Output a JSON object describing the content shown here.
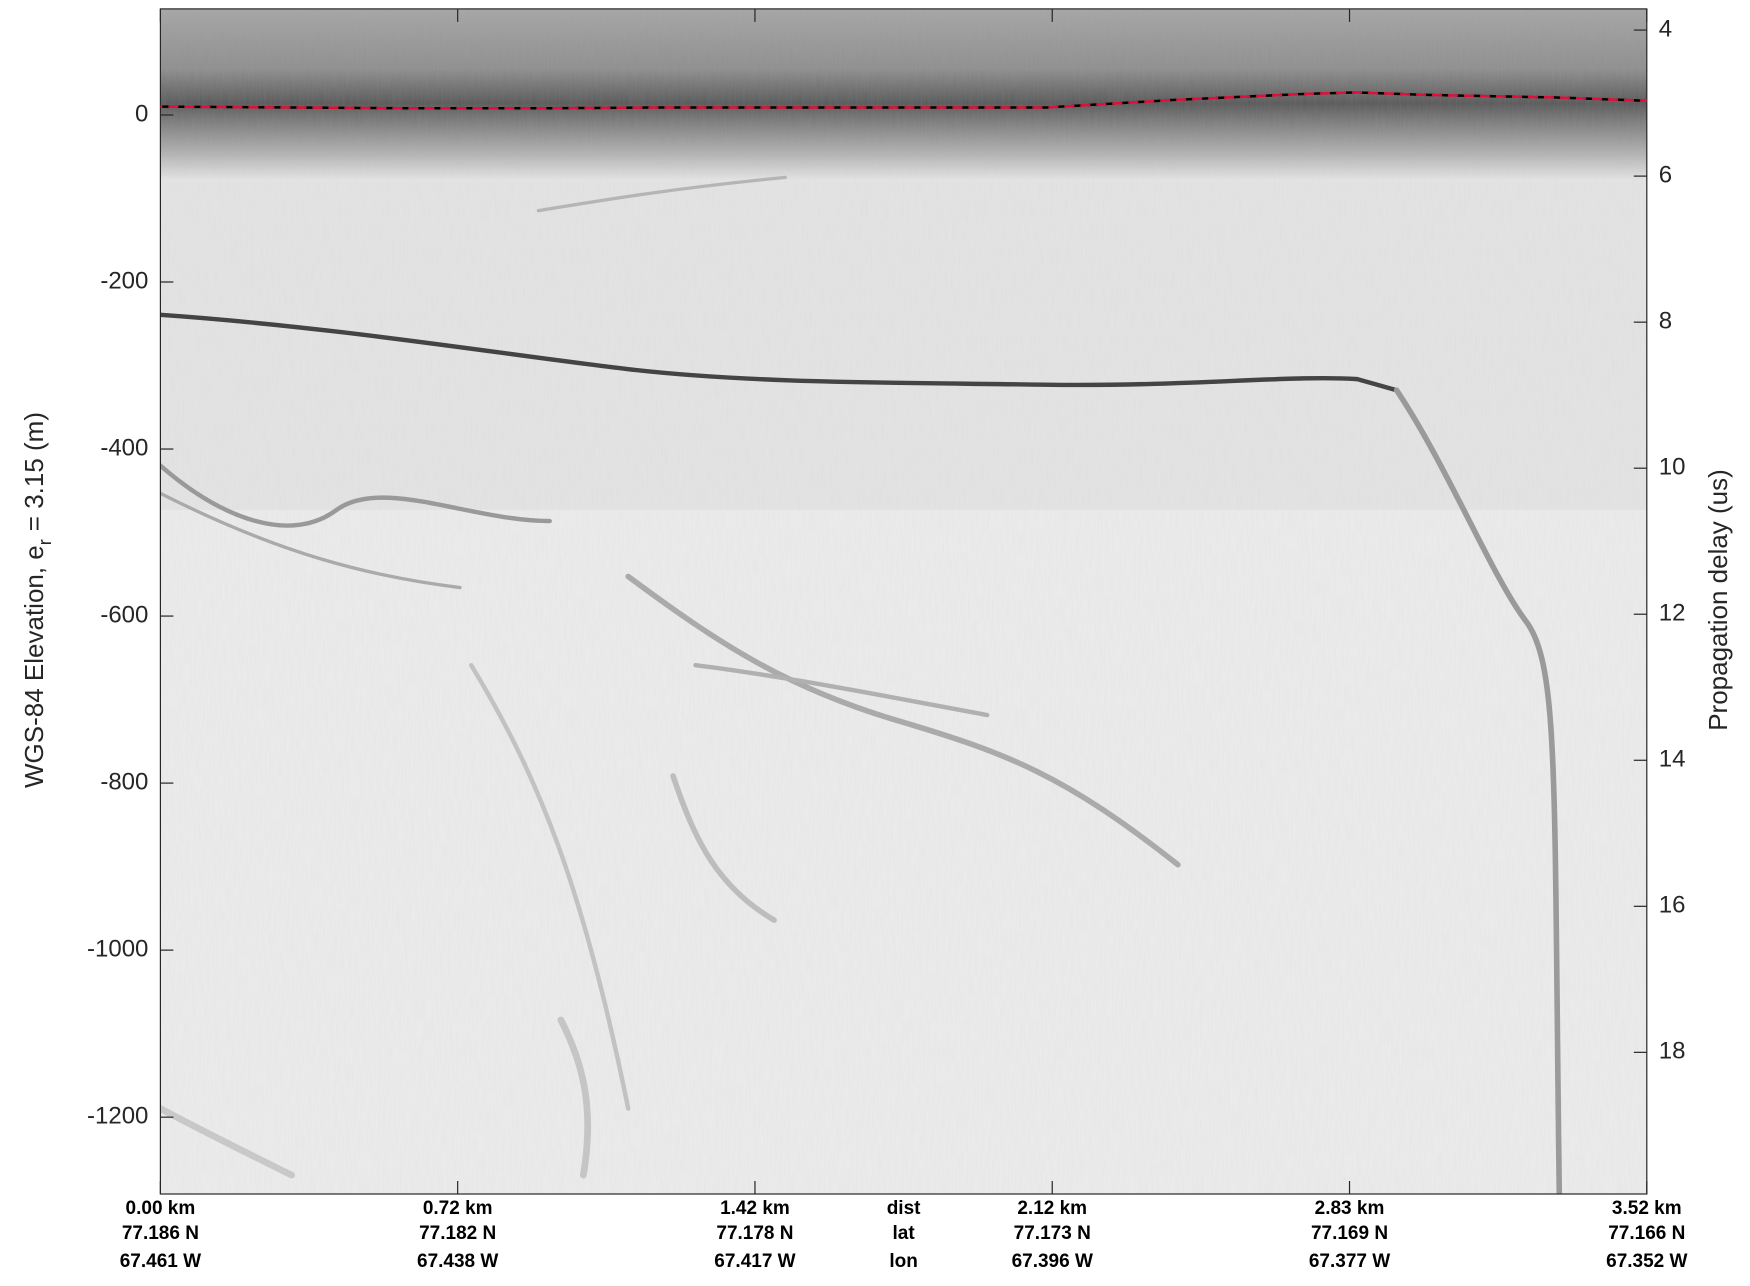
{
  "chart_data": {
    "type": "line",
    "ylabel": "WGS-84 Elevation, e",
    "ylabel_subscript": "r",
    "ylabel_rest": "= 3.15 (m)",
    "y2label": "Propagation delay (us)",
    "xlim": [
      0,
      3.52
    ],
    "xticks": [
      {
        "value": 0,
        "label": "0.00 km"
      },
      {
        "value": 0.704,
        "label": "0.72 km"
      },
      {
        "value": 1.408,
        "label": "1.42 km"
      },
      {
        "value": 2.112,
        "label": "2.12 km"
      },
      {
        "value": 2.816,
        "label": "2.83 km"
      },
      {
        "value": 3.52,
        "label": "3.52 km"
      }
    ],
    "lat_labels": [
      "77.186 N",
      "77.182 N",
      "77.178 N",
      "77.173 N",
      "77.169 N",
      "77.166 N"
    ],
    "lon_labels": [
      "67.461 W",
      "67.438 W",
      "67.417 W",
      "67.396 W",
      "67.377 W",
      "67.352 W"
    ],
    "row_labels": [
      "dist",
      "lat",
      "lon"
    ],
    "ylim": [
      -1292,
      127
    ],
    "yticks": [
      -1200,
      -1000,
      -800,
      -600,
      -400,
      -200,
      0
    ],
    "y2lim": [
      19.94,
      3.71
    ],
    "y2ticks": [
      4,
      6,
      8,
      10,
      12,
      14,
      16,
      18
    ],
    "series": [
      {
        "color": "#e0103a",
        "x": [
          0,
          0.3,
          0.6,
          0.9,
          1.2,
          1.5,
          1.8,
          2.1,
          2.4,
          2.7,
          2.83,
          3.0,
          3.3,
          3.52
        ],
        "values": [
          10,
          9,
          8,
          8,
          9,
          9,
          9,
          9,
          18,
          25,
          27,
          24,
          21,
          17
        ]
      }
    ]
  }
}
